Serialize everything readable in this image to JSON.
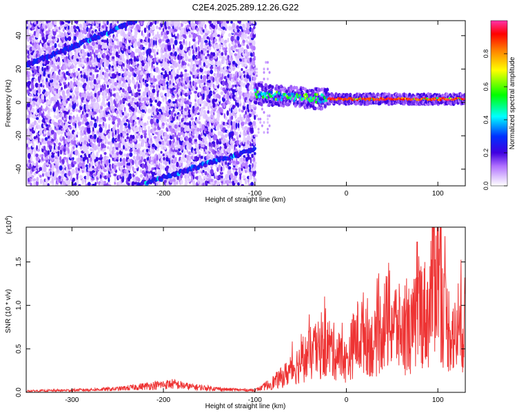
{
  "title": "C2E4.2025.289.12.26.G22",
  "chart_data": [
    {
      "type": "heatmap",
      "title": "C2E4.2025.289.12.26.G22",
      "xlabel": "Height of straight line (km)",
      "ylabel": "Frequency (Hz)",
      "xlim": [
        -350,
        130
      ],
      "ylim": [
        -50,
        49
      ],
      "xticks": [
        -300,
        -200,
        -100,
        0,
        100
      ],
      "yticks": [
        -40,
        -20,
        0,
        20,
        40
      ],
      "x_tick_labels": [
        "-300",
        "-200",
        "-100",
        "0",
        "100"
      ],
      "y_tick_labels": [
        "-40",
        "-20",
        "0",
        "20",
        "40"
      ],
      "colorbar": {
        "label": "Normalized spectral amplitude",
        "range": [
          0,
          1
        ],
        "ticks": [
          0,
          0.2,
          0.4,
          0.6,
          0.8
        ],
        "tick_labels": [
          "0.0",
          "0.2",
          "0.4",
          "0.6",
          "0.8"
        ],
        "colors": [
          "#ffffff",
          "#d9b3ff",
          "#a64dff",
          "#5a00e6",
          "#0000ff",
          "#00ffff",
          "#00ff00",
          "#ffff00",
          "#ff8000",
          "#ff0000",
          "#ff33aa"
        ]
      },
      "features": {
        "noise_region_x": [
          -350,
          -100
        ],
        "signal_band": {
          "x": [
            -100,
            130
          ],
          "freq_hz": [
            5,
            2
          ],
          "amplitude": 0.9
        },
        "diagonal_traces": [
          {
            "x": [
              -350,
              -230
            ],
            "freq_hz": [
              22,
              49
            ]
          },
          {
            "x": [
              -230,
              -100
            ],
            "freq_hz": [
              -50,
              -28
            ]
          }
        ]
      }
    },
    {
      "type": "line",
      "xlabel": "Height of straight line (km)",
      "ylabel": "SNR (10 * v/v)",
      "y_scale_label": "(x10",
      "y_scale_exp": "4",
      "y_scale_close": ")",
      "xlim": [
        -350,
        130
      ],
      "ylim": [
        0,
        1.9
      ],
      "xticks": [
        -300,
        -200,
        -100,
        0,
        100
      ],
      "yticks": [
        0,
        0.5,
        1.0,
        1.5
      ],
      "x_tick_labels": [
        "-300",
        "-200",
        "-100",
        "0",
        "100"
      ],
      "y_tick_labels": [
        "0.0",
        "0.5",
        "1.0",
        "1.5"
      ],
      "series": [
        {
          "name": "SNR",
          "color": "#ee3333",
          "x": [
            -350,
            -300,
            -250,
            -210,
            -190,
            -170,
            -130,
            -100,
            -85,
            -70,
            -60,
            -50,
            -40,
            -30,
            -20,
            -10,
            0,
            10,
            20,
            30,
            40,
            50,
            60,
            70,
            80,
            90,
            95,
            100,
            105,
            110,
            120,
            130
          ],
          "y": [
            0.02,
            0.03,
            0.05,
            0.1,
            0.12,
            0.08,
            0.04,
            0.03,
            0.1,
            0.2,
            0.3,
            0.4,
            0.5,
            0.55,
            0.6,
            0.5,
            0.4,
            0.7,
            0.8,
            0.6,
            0.9,
            0.95,
            0.8,
            0.75,
            1.1,
            1.0,
            1.6,
            1.8,
            1.1,
            0.9,
            0.7,
            0.9
          ]
        }
      ]
    }
  ]
}
